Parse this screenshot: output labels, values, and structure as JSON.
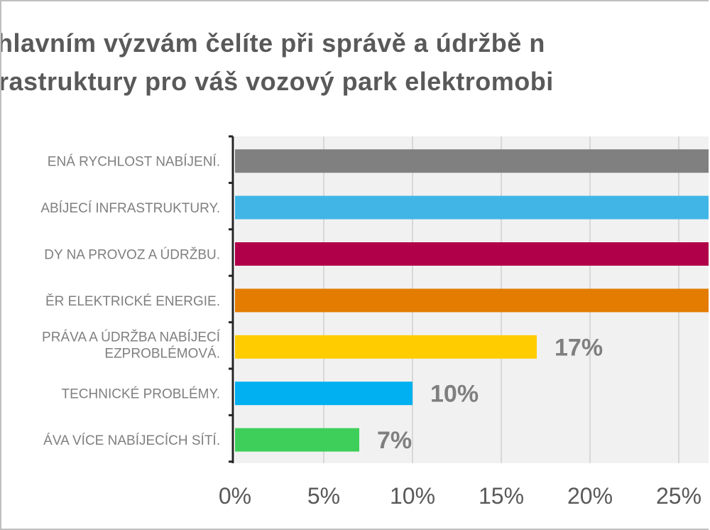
{
  "chart_data": {
    "type": "bar",
    "orientation": "horizontal",
    "title_lines": [
      "hlavním výzvám čelíte při správě a údržbě n",
      "rastruktury pro váš vozový park elektromobi"
    ],
    "categories": [
      [
        "ENÁ RYCHLOST NABÍJENÍ."
      ],
      [
        "ABÍJECÍ INFRASTRUKTURY."
      ],
      [
        "DY NA PROVOZ A ÚDRŽBU."
      ],
      [
        "ĚR ELEKTRICKÉ ENERGIE."
      ],
      [
        "PRÁVA A ÚDRŽBA NABÍJECÍ",
        "EZPROBLÉMOVÁ."
      ],
      [
        "TECHNICKÉ PROBLÉMY."
      ],
      [
        "ÁVA VÍCE NABÍJECÍCH SÍTÍ."
      ]
    ],
    "values": [
      30,
      30,
      30,
      30,
      17,
      10,
      7
    ],
    "data_labels": [
      "",
      "",
      "",
      "",
      "17%",
      "10%",
      "7%"
    ],
    "colors": [
      "#808080",
      "#41b6e6",
      "#b00049",
      "#e37c00",
      "#ffcc00",
      "#00b0f0",
      "#3ecf5a"
    ],
    "xlim": [
      0,
      30
    ],
    "x_ticks": [
      "0%",
      "5%",
      "10%",
      "15%",
      "20%",
      "25%"
    ],
    "grid": true
  }
}
